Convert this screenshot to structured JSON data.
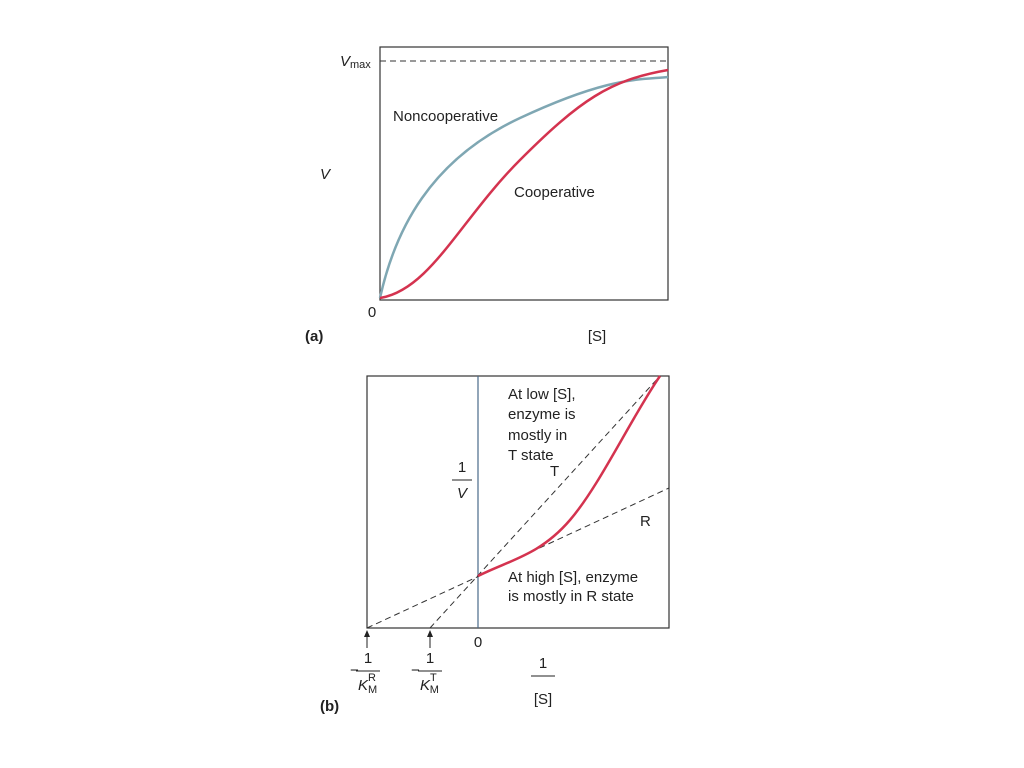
{
  "panel_a": {
    "label": "(a)",
    "vmax": {
      "main": "V",
      "sub": "max"
    },
    "y_label": "V",
    "x_label": "[S]",
    "origin": "0",
    "noncooperative": "Noncooperative",
    "cooperative": "Cooperative"
  },
  "panel_b": {
    "label": "(b)",
    "low_note": [
      "At low [S],",
      "enzyme is",
      "mostly in",
      "T state"
    ],
    "high_note": [
      "At high [S], enzyme",
      "is mostly in R state"
    ],
    "t_line": "T",
    "r_line": "R",
    "y_label": {
      "num": "1",
      "den": "V"
    },
    "x_label": {
      "num": "1",
      "den": "[S]"
    },
    "origin": "0",
    "km_r": {
      "sign": "−",
      "num": "1",
      "main": "K",
      "sub": "M",
      "sup": "R"
    },
    "km_t": {
      "sign": "−",
      "num": "1",
      "main": "K",
      "sub": "M",
      "sup": "T"
    }
  }
}
